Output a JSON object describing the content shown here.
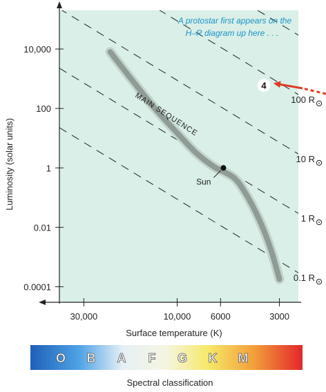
{
  "chart_data": {
    "type": "line",
    "title": "",
    "xlabel": "Surface temperature (K)",
    "ylabel": "Luminosity (solar units)",
    "x_scale": "log-reversed",
    "y_scale": "log",
    "xlim": [
      40000,
      2400
    ],
    "ylim": [
      3e-05,
      200000
    ],
    "grid": false,
    "x_ticks": [
      {
        "value": 30000,
        "label": "30,000"
      },
      {
        "value": 10000,
        "label": "10,000"
      },
      {
        "value": 6000,
        "label": "6000"
      },
      {
        "value": 3000,
        "label": "3000"
      }
    ],
    "y_ticks": [
      {
        "value": 10000,
        "label": "10,000"
      },
      {
        "value": 100,
        "label": "100"
      },
      {
        "value": 1,
        "label": "1"
      },
      {
        "value": 0.01,
        "label": "0.01"
      },
      {
        "value": 0.0001,
        "label": "0.0001"
      }
    ],
    "series": [
      {
        "name": "MAIN SEQUENCE",
        "x": [
          22000,
          17000,
          13000,
          10000,
          8000,
          6500,
          5800,
          5000,
          4300,
          3700,
          3300,
          3000
        ],
        "y": [
          8000,
          900,
          100,
          15,
          3.2,
          1.1,
          0.75,
          0.4,
          0.09,
          0.012,
          0.0016,
          0.00018
        ]
      }
    ],
    "radius_lines": [
      {
        "radius": 1000,
        "label": ""
      },
      {
        "radius": 100,
        "label": "100 R"
      },
      {
        "radius": 10,
        "label": "10 R"
      },
      {
        "radius": 1,
        "label": "1 R"
      },
      {
        "radius": 0.1,
        "label": "0.1 R"
      }
    ],
    "radius_symbol": "sun",
    "points": [
      {
        "label": "Sun",
        "x": 5800,
        "y": 1
      },
      {
        "label": "4",
        "x": 3000,
        "y": 600
      }
    ],
    "annotations": [
      {
        "text": "A protostar first appears on the"
      },
      {
        "text": "H–R diagram up here . . ."
      }
    ],
    "main_sequence_label": "MAIN SEQUENCE",
    "spectral": {
      "title": "Spectral classification",
      "classes": [
        "O",
        "B",
        "A",
        "F",
        "G",
        "K",
        "M"
      ]
    },
    "colors": {
      "plot_background": "#d9efe7",
      "main_sequence": "#8f9b95",
      "arrow": "#e03a26",
      "annotation": "#1a93c8",
      "spectral_gradient": [
        "#1f5fb8",
        "#4fa3e6",
        "#e6f0f5",
        "#f5f5e0",
        "#f6e96a",
        "#f2a03a",
        "#e3262b"
      ]
    }
  }
}
